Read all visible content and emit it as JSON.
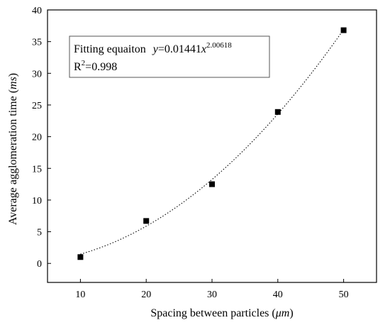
{
  "chart_data": {
    "type": "scatter",
    "xlabel": {
      "prefix": "Spacing between particles (",
      "unit": "μm",
      "suffix": ")"
    },
    "ylabel": {
      "prefix": "Average agglomeration time (",
      "unit": "ms",
      "suffix": ")"
    },
    "xlim": [
      5,
      55
    ],
    "ylim": [
      -3,
      40
    ],
    "xticks": [
      "10",
      "20",
      "30",
      "40",
      "50"
    ],
    "yticks": [
      "0",
      "5",
      "10",
      "15",
      "20",
      "25",
      "30",
      "35",
      "40"
    ],
    "series": [
      {
        "marker": "square",
        "x": [
          10,
          20,
          30,
          40,
          50
        ],
        "y": [
          1.0,
          6.7,
          12.5,
          23.9,
          36.8
        ]
      }
    ],
    "fit": {
      "style": "dotted",
      "coef": 0.01441,
      "exponent": 2.00618,
      "x_range": [
        10,
        50
      ]
    },
    "annotation": {
      "line1_label": "Fitting equaiton",
      "line1_var": "y",
      "line1_eq": "=0.01441",
      "line1_x": "x",
      "line1_exp": "2.00618",
      "line2_prefix": "R",
      "line2_sup": "2",
      "line2_rest": "=0.998"
    }
  }
}
